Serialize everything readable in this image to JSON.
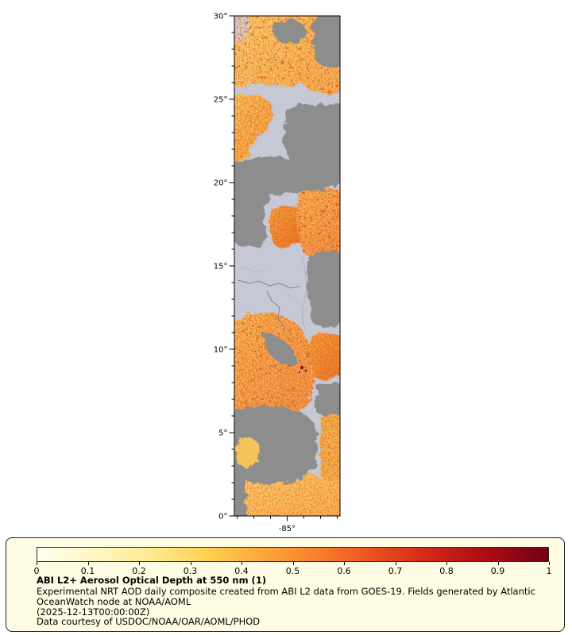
{
  "map": {
    "lat_tick_labels": [
      "30°",
      "25°",
      "20°",
      "15°",
      "10°",
      "5°",
      "0°"
    ],
    "lon_tick_label": "-85°",
    "colors": {
      "no_data_background": "#c6c8d5",
      "cloud_gray": "#8d8d8d",
      "frame": "#000000"
    }
  },
  "colorbar": {
    "tick_labels": [
      "0",
      "0.1",
      "0.2",
      "0.3",
      "0.4",
      "0.5",
      "0.6",
      "0.7",
      "0.8",
      "0.9",
      "1"
    ],
    "colors": [
      "#fffef2",
      "#fff7c2",
      "#feea92",
      "#fed24f",
      "#fda53a",
      "#f87c2a",
      "#e84e1f",
      "#ce2417",
      "#a60c14",
      "#730013"
    ],
    "panel_background": "#fffce4"
  },
  "caption": {
    "title": "ABI L2+ Aerosol Optical Depth at 550 nm (1)",
    "description": "Experimental NRT AOD daily composite created from ABI L2 data from GOES-19. Fields generated by Atlantic OceanWatch node at NOAA/AOML",
    "timestamp": "(2025-12-13T00:00:00Z)",
    "credit": "Data courtesy of USDOC/NOAA/OAR/AOML/PHOD"
  },
  "chart_data": {
    "type": "heatmap",
    "title": "ABI L2+ Aerosol Optical Depth at 550 nm (1)",
    "variable": "Aerosol Optical Depth at 550 nm",
    "data_source_text": "ABI L2 data from GOES-19",
    "timestamp": "2025-12-13T00:00:00Z",
    "colorbar": {
      "min": 0,
      "max": 1,
      "ticks": [
        0,
        0.1,
        0.2,
        0.3,
        0.4,
        0.5,
        0.6,
        0.7,
        0.8,
        0.9,
        1
      ],
      "orientation": "horizontal",
      "palette": [
        "#fffef2",
        "#fff7c2",
        "#feea92",
        "#fed24f",
        "#fda53a",
        "#f87c2a",
        "#e84e1f",
        "#ce2417",
        "#a60c14",
        "#730013"
      ]
    },
    "axes": {
      "lat_tick_values_deg": [
        30,
        25,
        20,
        15,
        10,
        5,
        0
      ],
      "lon_tick_values_deg": [
        -85
      ],
      "lat_range_deg": [
        0,
        30
      ]
    },
    "rendering_notes": "Vertical map strip over Central America; mottled yellow-to-red pixels = AOD values roughly 0.1-0.6; solid gray patches = cloud / no retrieval; pale lavender = background / no data"
  }
}
